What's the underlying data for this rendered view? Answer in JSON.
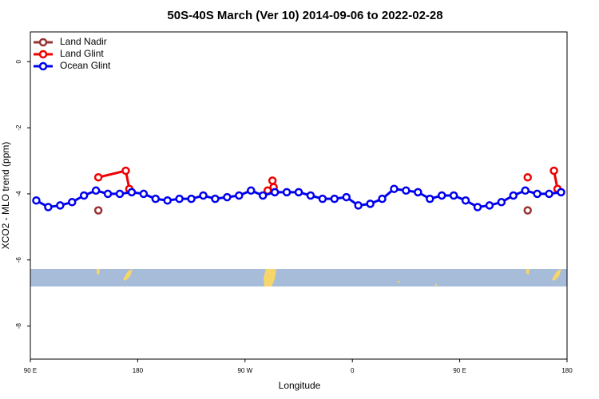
{
  "chart_data": {
    "type": "line",
    "title": "50S-40S March (Ver 10)   2014-09-06 to 2022-02-28",
    "x_label": "Longitude",
    "y_label": "XCO2 - MLO trend (ppm)",
    "xlim": [
      90,
      540
    ],
    "ylim": [
      -9,
      0.9
    ],
    "xticks": [
      {
        "value": 90,
        "label": "90 E"
      },
      180,
      {
        "value": 270,
        "label": "90 W"
      },
      {
        "value": 360,
        "label": "0"
      },
      {
        "value": 450,
        "label": "90 E"
      },
      {
        "value": 540,
        "label": "180"
      }
    ],
    "yticks": [
      0,
      -2,
      -4,
      -6,
      -8
    ],
    "legend": "top-left",
    "series": [
      {
        "name": "Land Nadir",
        "color": "#993333",
        "x": [
          147,
          null,
          507
        ],
        "values": [
          -4.5,
          null,
          -4.5
        ]
      },
      {
        "name": "Land Glint",
        "color": "#ee0000",
        "x": [
          147,
          170,
          173,
          null,
          289,
          null,
          293,
          294,
          null,
          507,
          null,
          529,
          532
        ],
        "values": [
          -3.5,
          -3.3,
          -3.85,
          null,
          -3.9,
          null,
          -3.6,
          -3.8,
          null,
          -3.5,
          null,
          -3.3,
          -3.85
        ]
      },
      {
        "name": "Ocean Glint",
        "color": "#0000ee",
        "x": [
          95,
          105,
          115,
          125,
          135,
          145,
          155,
          165,
          175,
          185,
          195,
          205,
          215,
          225,
          235,
          245,
          255,
          265,
          275,
          285,
          295,
          305,
          315,
          325,
          335,
          345,
          355,
          365,
          375,
          385,
          395,
          405,
          415,
          425,
          435,
          445,
          455,
          465,
          475,
          485,
          495,
          505,
          515,
          525,
          535
        ],
        "values": [
          -4.2,
          -4.4,
          -4.35,
          -4.25,
          -4.05,
          -3.9,
          -4.0,
          -4.0,
          -3.95,
          -4.0,
          -4.15,
          -4.2,
          -4.15,
          -4.15,
          -4.05,
          -4.15,
          -4.1,
          -4.05,
          -3.9,
          -4.05,
          -3.95,
          -3.95,
          -3.95,
          -4.05,
          -4.15,
          -4.15,
          -4.1,
          -4.35,
          -4.3,
          -4.15,
          -3.85,
          -3.9,
          -3.95,
          -4.15,
          -4.05,
          -4.05,
          -4.2,
          -4.4,
          -4.35,
          -4.25,
          -4.05,
          -3.9,
          -4.0,
          -4.0,
          -3.95
        ]
      }
    ]
  }
}
